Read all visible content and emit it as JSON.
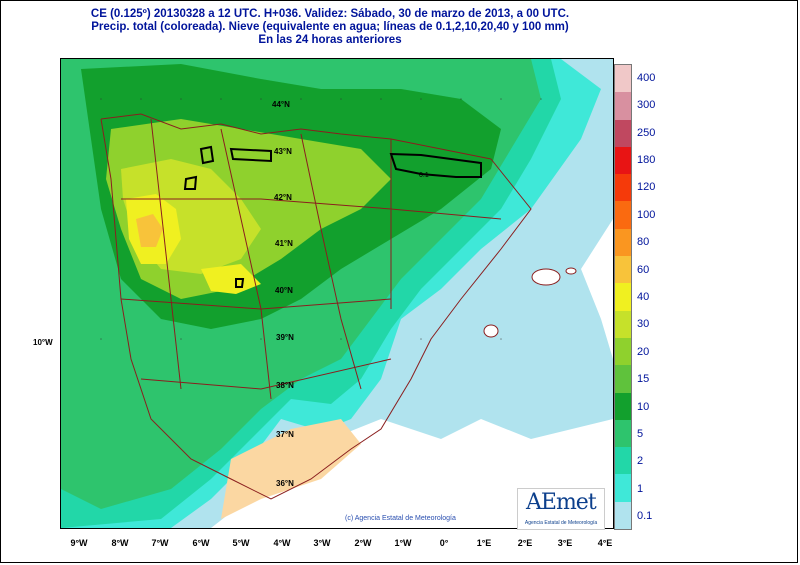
{
  "title": {
    "line1": "CE (0.125º) 20130328 a 12 UTC.  H+036. Validez: Sábado, 30 de marzo de 2013,  a  00 UTC.",
    "line2": "Precip. total (coloreada). Nieve (equivalente en agua; líneas de 0.1,2,10,20,40 y 100 mm)",
    "line3": "En las 24 horas anteriores"
  },
  "map": {
    "lon_labels": [
      "9°W",
      "8°W",
      "7°W",
      "6°W",
      "5°W",
      "4°W",
      "3°W",
      "2°W",
      "1°W",
      "0°",
      "1°E",
      "2°E",
      "3°E",
      "4°E"
    ],
    "lat_labels": [
      "44°N",
      "43°N",
      "42°N",
      "41°N",
      "40°N",
      "39°N",
      "38°N",
      "37°N",
      "36°N"
    ],
    "side_label": "10°W",
    "snow_contour_label": "0.1",
    "copyright": "(c) Agencia Estatal de Meteorología"
  },
  "legend": {
    "labels": [
      "0.1",
      "1",
      "2",
      "5",
      "10",
      "15",
      "20",
      "30",
      "40",
      "60",
      "80",
      "100",
      "120",
      "180",
      "250",
      "300",
      "400"
    ],
    "colors": [
      "#b0e3ee",
      "#3fe8d8",
      "#22d7a8",
      "#2ec46d",
      "#12a02d",
      "#5fc23c",
      "#8fd12d",
      "#c6e12a",
      "#f0f020",
      "#f8c33a",
      "#fa9620",
      "#fa6a10",
      "#f53a0a",
      "#e81414",
      "#c04860",
      "#d890a0",
      "#f0c8c8"
    ]
  },
  "logo": {
    "text": "AEmet",
    "subtitle": "Agencia Estatal de Meteorología"
  }
}
